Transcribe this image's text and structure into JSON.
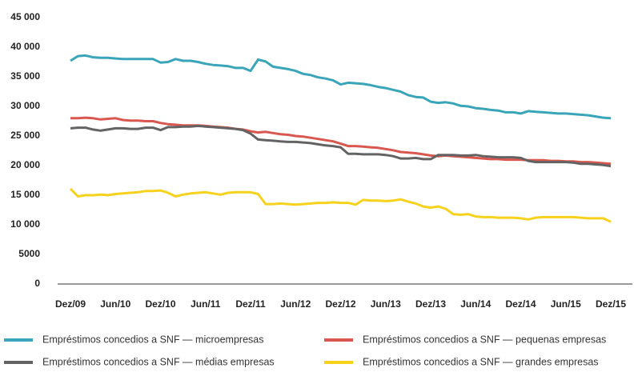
{
  "chart_data": {
    "type": "line",
    "categories": [
      "Dez/09",
      null,
      null,
      null,
      null,
      null,
      "Jun/10",
      null,
      null,
      null,
      null,
      null,
      "Dez/10",
      null,
      null,
      null,
      null,
      null,
      "Jun/11",
      null,
      null,
      null,
      null,
      null,
      "Dez/11",
      null,
      null,
      null,
      null,
      null,
      "Jun/12",
      null,
      null,
      null,
      null,
      null,
      "Dez/12",
      null,
      null,
      null,
      null,
      null,
      "Jun/13",
      null,
      null,
      null,
      null,
      null,
      "Dez/13",
      null,
      null,
      null,
      null,
      null,
      "Jun/14",
      null,
      null,
      null,
      null,
      null,
      "Dez/14",
      null,
      null,
      null,
      null,
      null,
      "Jun/15",
      null,
      null,
      null,
      null,
      null,
      "Dez/15"
    ],
    "series": [
      {
        "name": "Empréstimos concedios a SNF — microempresas",
        "color": "#3aa5b8",
        "values": [
          37700,
          38500,
          38600,
          38300,
          38200,
          38200,
          38100,
          38000,
          38000,
          38000,
          38000,
          38000,
          37400,
          37500,
          38000,
          37700,
          37700,
          37500,
          37200,
          37000,
          36900,
          36800,
          36500,
          36500,
          36000,
          37900,
          37600,
          36700,
          36500,
          36300,
          36000,
          35500,
          35300,
          34900,
          34700,
          34400,
          33700,
          34000,
          33900,
          33800,
          33600,
          33300,
          33100,
          32800,
          32500,
          31900,
          31600,
          31500,
          30800,
          30600,
          30700,
          30500,
          30100,
          30000,
          29700,
          29600,
          29400,
          29300,
          29000,
          29000,
          28800,
          29200,
          29100,
          29000,
          28900,
          28800,
          28800,
          28700,
          28600,
          28500,
          28300,
          28100,
          28000
        ]
      },
      {
        "name": "Empréstimos concedios a SNF — pequenas empresas",
        "color": "#d9574f",
        "values": [
          28000,
          28000,
          28100,
          28000,
          27800,
          27900,
          28000,
          27700,
          27600,
          27600,
          27500,
          27500,
          27200,
          27000,
          26900,
          26800,
          26800,
          26800,
          26700,
          26600,
          26500,
          26400,
          26200,
          26100,
          25800,
          25600,
          25700,
          25500,
          25300,
          25200,
          25000,
          24900,
          24700,
          24500,
          24300,
          24100,
          23700,
          23300,
          23300,
          23200,
          23100,
          23000,
          22800,
          22600,
          22300,
          22200,
          22100,
          21900,
          21700,
          21600,
          21700,
          21600,
          21500,
          21400,
          21300,
          21200,
          21100,
          21100,
          21000,
          21000,
          21000,
          20900,
          20900,
          20900,
          20800,
          20800,
          20700,
          20700,
          20600,
          20600,
          20500,
          20400,
          20300
        ]
      },
      {
        "name": "Empréstimos concedios a SNF — médias empresas",
        "color": "#636363",
        "values": [
          26300,
          26400,
          26400,
          26100,
          25900,
          26100,
          26300,
          26300,
          26200,
          26200,
          26400,
          26400,
          26000,
          26500,
          26500,
          26600,
          26600,
          26700,
          26600,
          26500,
          26400,
          26300,
          26200,
          26000,
          25400,
          24400,
          24300,
          24200,
          24100,
          24000,
          24000,
          23900,
          23800,
          23600,
          23400,
          23300,
          23100,
          22000,
          22000,
          21900,
          21900,
          21900,
          21800,
          21600,
          21200,
          21200,
          21300,
          21100,
          21100,
          21800,
          21800,
          21800,
          21700,
          21700,
          21800,
          21600,
          21500,
          21400,
          21400,
          21400,
          21300,
          20800,
          20600,
          20600,
          20600,
          20600,
          20600,
          20500,
          20300,
          20300,
          20200,
          20100,
          19900
        ]
      },
      {
        "name": "Empréstimos concedios a SNF — grandes empresas",
        "color": "#f6d21d",
        "values": [
          16100,
          14800,
          15000,
          15000,
          15100,
          15000,
          15200,
          15300,
          15400,
          15500,
          15700,
          15700,
          15800,
          15400,
          14800,
          15100,
          15300,
          15400,
          15500,
          15300,
          15100,
          15400,
          15500,
          15500,
          15500,
          15200,
          13500,
          13500,
          13600,
          13500,
          13400,
          13500,
          13600,
          13700,
          13700,
          13800,
          13700,
          13700,
          13400,
          14200,
          14100,
          14100,
          14000,
          14100,
          14300,
          13900,
          13600,
          13100,
          12900,
          13100,
          12700,
          11800,
          11700,
          11800,
          11400,
          11300,
          11300,
          11200,
          11200,
          11200,
          11100,
          10900,
          11200,
          11300,
          11300,
          11300,
          11300,
          11300,
          11200,
          11100,
          11100,
          11100,
          10500
        ]
      }
    ],
    "ylim": [
      0,
      45000
    ],
    "yticks": [
      0,
      5000,
      {
        "value": 10000,
        "label": "10 000"
      },
      {
        "value": 15000,
        "label": "15 000"
      },
      {
        "value": 20000,
        "label": "20 000"
      },
      {
        "value": 25000,
        "label": "25 000"
      },
      {
        "value": 30000,
        "label": "30 000"
      },
      {
        "value": 35000,
        "label": "35 000"
      },
      {
        "value": 40000,
        "label": "40 000"
      },
      {
        "value": 45000,
        "label": "45 000"
      }
    ],
    "grid": false
  }
}
